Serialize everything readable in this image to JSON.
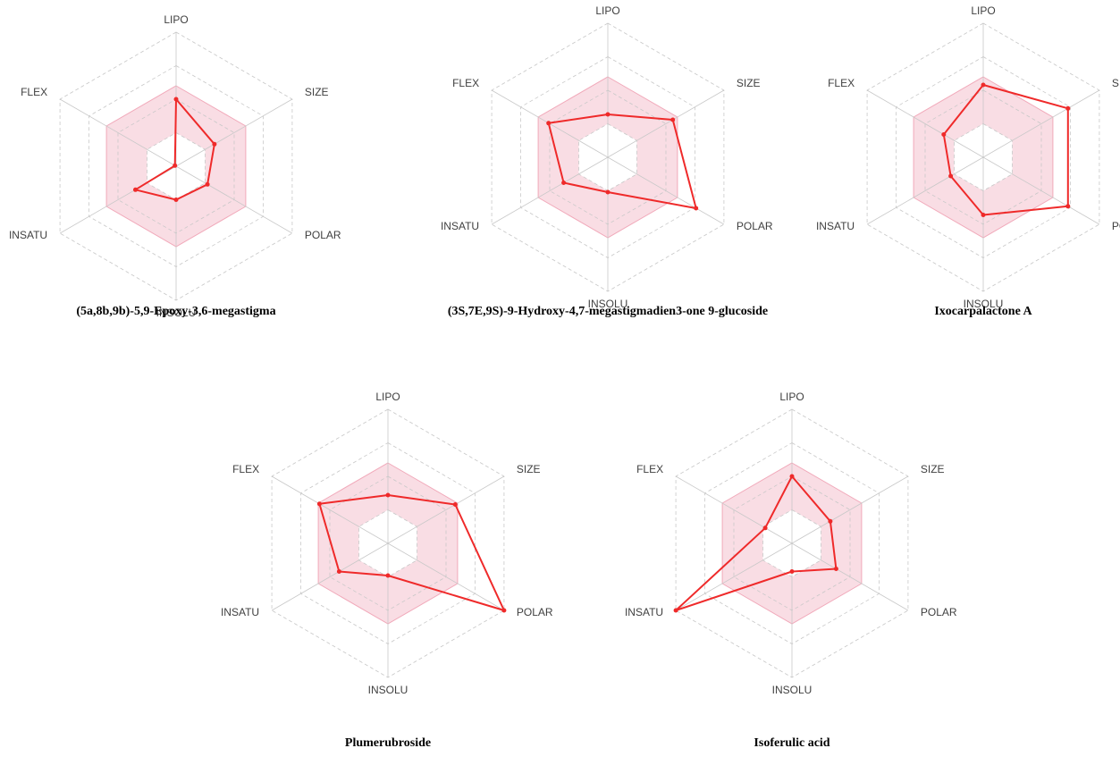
{
  "colors": {
    "band": "#f9dde4",
    "band_edge": "#f1a9ba",
    "grid": "#c8c8c8",
    "series": "#ef2a2a"
  },
  "chart_data": [
    {
      "type": "radar",
      "title": "(5a,8b,9b)-5,9-Epoxy-3,6-megastigma",
      "axes": [
        "LIPO",
        "SIZE",
        "POLAR",
        "INSOLU",
        "INSATU",
        "FLEX"
      ],
      "optimal_range": [
        0.25,
        0.6
      ],
      "values": [
        0.5,
        0.33,
        0.27,
        0.25,
        0.35,
        0.01
      ],
      "grid": true
    },
    {
      "type": "radar",
      "title": "(3S,7E,9S)-9-Hydroxy-4,7-megastigmadien3-one 9-glucoside",
      "axes": [
        "LIPO",
        "SIZE",
        "POLAR",
        "INSOLU",
        "INSATU",
        "FLEX"
      ],
      "optimal_range": [
        0.25,
        0.6
      ],
      "values": [
        0.32,
        0.56,
        0.76,
        0.26,
        0.38,
        0.51
      ],
      "grid": true
    },
    {
      "type": "radar",
      "title": "Ixocarpalactone A",
      "axes": [
        "LIPO",
        "SIZE",
        "POLAR",
        "INSOLU",
        "INSATU",
        "FLEX"
      ],
      "optimal_range": [
        0.25,
        0.6
      ],
      "values": [
        0.54,
        0.73,
        0.73,
        0.43,
        0.28,
        0.34
      ],
      "grid": true
    },
    {
      "type": "radar",
      "title": "Plumerubroside",
      "axes": [
        "LIPO",
        "SIZE",
        "POLAR",
        "INSOLU",
        "INSATU",
        "FLEX"
      ],
      "optimal_range": [
        0.25,
        0.6
      ],
      "values": [
        0.36,
        0.58,
        1.0,
        0.24,
        0.42,
        0.59
      ],
      "grid": true
    },
    {
      "type": "radar",
      "title": "Isoferulic acid",
      "axes": [
        "LIPO",
        "SIZE",
        "POLAR",
        "INSOLU",
        "INSATU",
        "FLEX"
      ],
      "optimal_range": [
        0.25,
        0.6
      ],
      "values": [
        0.5,
        0.33,
        0.38,
        0.21,
        1.0,
        0.23
      ],
      "grid": true
    }
  ]
}
